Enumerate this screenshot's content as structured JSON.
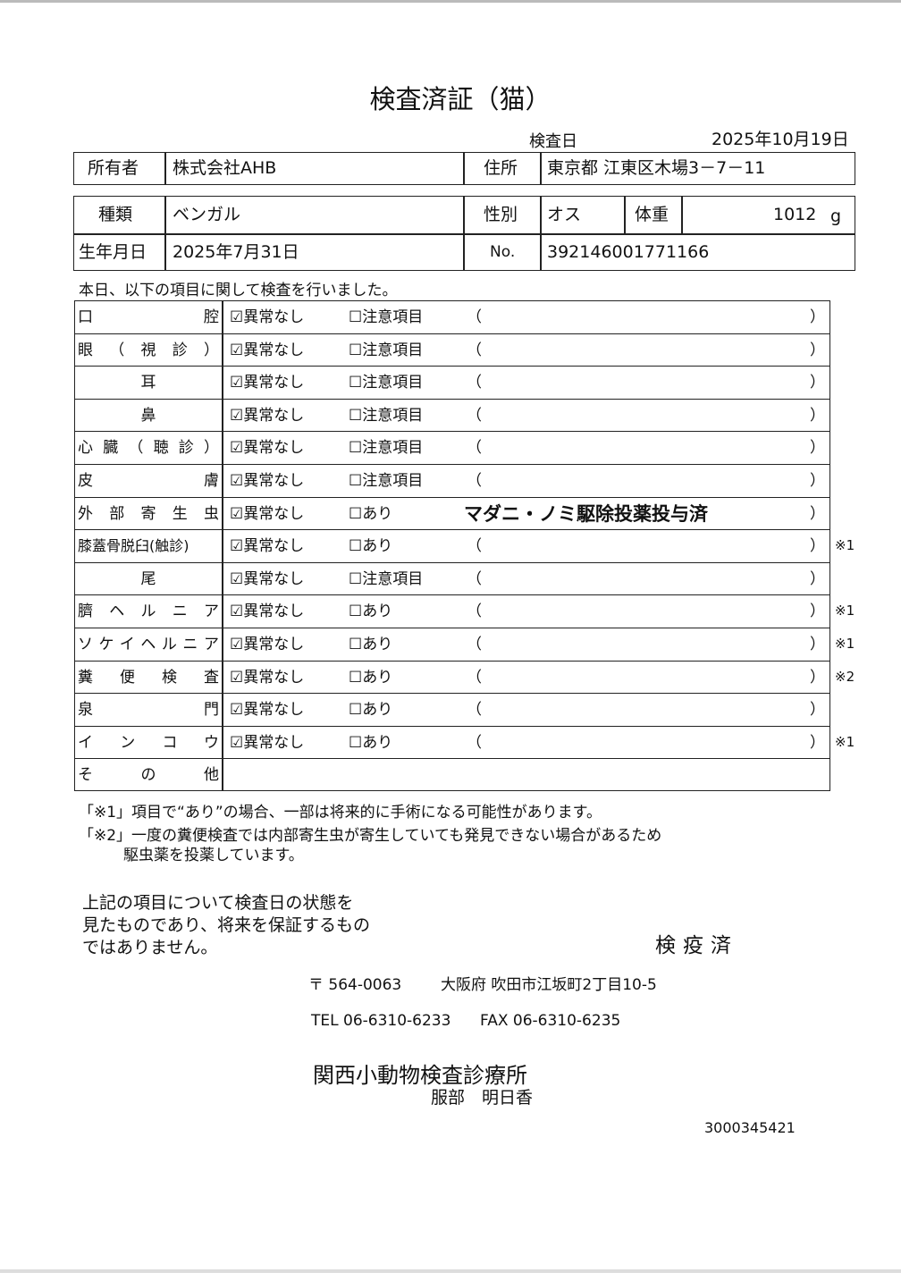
{
  "title": "検査済証（猫）",
  "inspection_date_label": "検査日",
  "inspection_date": "2025年10月19日",
  "owner": {
    "label": "所有者",
    "value": "株式会社AHB"
  },
  "address": {
    "label": "住所",
    "value": "東京都 江東区木場3－7－11"
  },
  "breed": {
    "label": "種類",
    "value": "ベンガル"
  },
  "sex": {
    "label": "性別",
    "value": "オス"
  },
  "weight": {
    "label": "体重",
    "value": "1012",
    "unit": "g"
  },
  "birthdate": {
    "label": "生年月日",
    "value": "2025年7月31日"
  },
  "number": {
    "label": "No.",
    "value": "392146001771166"
  },
  "intro": "本日、以下の項目に関して検査を行いました。",
  "rows": [
    {
      "label": "口腔",
      "check": "☑異常なし",
      "option": "☐注意項目",
      "open": "（",
      "note": "",
      "close": "）",
      "mark": ""
    },
    {
      "label": "眼（視診）",
      "check": "☑異常なし",
      "option": "☐注意項目",
      "open": "（",
      "note": "",
      "close": "）",
      "mark": ""
    },
    {
      "label": "耳",
      "check": "☑異常なし",
      "option": "☐注意項目",
      "open": "（",
      "note": "",
      "close": "）",
      "mark": ""
    },
    {
      "label": "鼻",
      "check": "☑異常なし",
      "option": "☐注意項目",
      "open": "（",
      "note": "",
      "close": "）",
      "mark": ""
    },
    {
      "label": "心臓（聴診）",
      "check": "☑異常なし",
      "option": "☐注意項目",
      "open": "（",
      "note": "",
      "close": "）",
      "mark": ""
    },
    {
      "label": "皮膚",
      "check": "☑異常なし",
      "option": "☐注意項目",
      "open": "（",
      "note": "",
      "close": "）",
      "mark": ""
    },
    {
      "label": "外部寄生虫",
      "check": "☑異常なし",
      "option": "☐あり",
      "open": "",
      "note": "マダニ・ノミ駆除投薬投与済",
      "close": "）",
      "mark": ""
    },
    {
      "label": "膝蓋骨脱臼(触診)",
      "check": "☑異常なし",
      "option": "☐あり",
      "open": "（",
      "note": "",
      "close": "）",
      "mark": "※1"
    },
    {
      "label": "尾",
      "check": "☑異常なし",
      "option": "☐注意項目",
      "open": "（",
      "note": "",
      "close": "）",
      "mark": ""
    },
    {
      "label": "臍ヘルニア",
      "check": "☑異常なし",
      "option": "☐あり",
      "open": "（",
      "note": "",
      "close": "）",
      "mark": "※1"
    },
    {
      "label": "ソケイヘルニア",
      "check": "☑異常なし",
      "option": "☐あり",
      "open": "（",
      "note": "",
      "close": "）",
      "mark": "※1"
    },
    {
      "label": "糞便検査",
      "check": "☑異常なし",
      "option": "☐あり",
      "open": "（",
      "note": "",
      "close": "）",
      "mark": "※2"
    },
    {
      "label": "泉門",
      "check": "☑異常なし",
      "option": "☐あり",
      "open": "（",
      "note": "",
      "close": "）",
      "mark": ""
    },
    {
      "label": "インコウ",
      "check": "☑異常なし",
      "option": "☐あり",
      "open": "（",
      "note": "",
      "close": "）",
      "mark": "※1"
    },
    {
      "label": "その他",
      "check": "",
      "option": "",
      "open": "",
      "note": "",
      "close": "",
      "mark": ""
    }
  ],
  "footnotes": [
    "「※1」項目で“あり”の場合、一部は将来的に手術になる可能性があります。",
    "「※2」一度の糞便検査では内部寄生虫が寄生していても発見できない場合があるため",
    "駆虫薬を投薬しています。"
  ],
  "disclaimer": [
    "上記の項目について検査日の状態を",
    "見たものであり、将来を保証するもの",
    "ではありません。"
  ],
  "stamp": "検疫済",
  "clinic": {
    "postal": "〒 564-0063",
    "address": "大阪府 吹田市江坂町2丁目10-5",
    "tel": "TEL 06-6310-6233",
    "fax": "FAX 06-6310-6235",
    "name": "関西小動物検査診療所",
    "person": "服部　明日香"
  },
  "doc_number": "3000345421"
}
